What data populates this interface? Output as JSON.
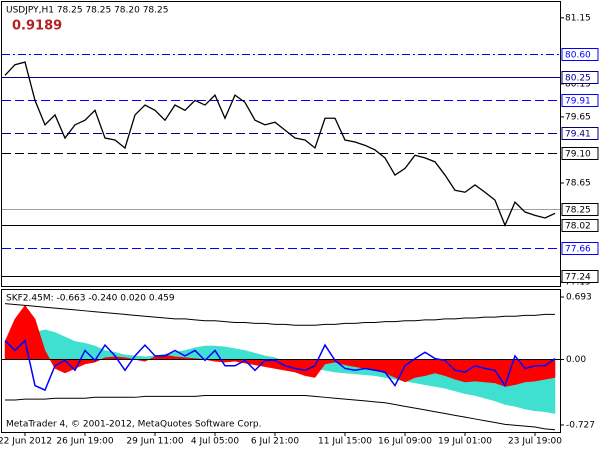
{
  "chart_data": [
    {
      "type": "line",
      "title": "USDJPY,H1  78.25 78.25 78.20 78.25",
      "subtitle": "0.9189",
      "categories": [
        null,
        null,
        "22 Jun 2012",
        null,
        null,
        null,
        null,
        null,
        "26 Jun 19:00",
        null,
        null,
        null,
        null,
        null,
        null,
        "29 Jun 11:00",
        null,
        null,
        null,
        null,
        null,
        "4 Jul 05:00",
        null,
        null,
        null,
        null,
        null,
        "6 Jul 21:00",
        null,
        null,
        null,
        null,
        null,
        null,
        "11 Jul 15:00",
        null,
        null,
        null,
        null,
        null,
        "16 Jul 09:00",
        null,
        null,
        null,
        null,
        null,
        "19 Jul 01:00",
        null,
        null,
        null,
        null,
        null,
        null,
        "23 Jul 19:00",
        null,
        null
      ],
      "series": [
        {
          "name": "USDJPY",
          "color": "#000000",
          "values": [
            80.28,
            80.44,
            80.48,
            79.9,
            79.53,
            79.68,
            79.33,
            79.53,
            79.6,
            79.75,
            79.33,
            79.3,
            79.18,
            79.68,
            79.83,
            79.75,
            79.6,
            79.83,
            79.75,
            79.9,
            79.83,
            79.98,
            79.63,
            79.98,
            79.87,
            79.6,
            79.53,
            79.57,
            79.45,
            79.33,
            79.3,
            79.18,
            79.63,
            79.63,
            79.3,
            79.27,
            79.22,
            79.15,
            79.03,
            78.77,
            78.87,
            79.07,
            79.03,
            78.97,
            78.77,
            78.54,
            78.51,
            78.62,
            78.51,
            78.39,
            78.01,
            78.36,
            78.21,
            78.16,
            78.12,
            78.19
          ]
        }
      ],
      "ylim": [
        77.06,
        81.42
      ],
      "yticks": [
        81.15,
        80.15,
        79.65,
        78.65,
        77.15
      ],
      "levels": [
        {
          "value": 80.6,
          "label": "80.60",
          "color": "#0000ff",
          "style": "dashdot"
        },
        {
          "value": 80.25,
          "label": "80.25",
          "color": "#000080",
          "style": "solid"
        },
        {
          "value": 79.91,
          "label": "79.91",
          "color": "#0000ff",
          "style": "dash"
        },
        {
          "value": 79.41,
          "label": "79.41",
          "color": "#000080",
          "style": "dash"
        },
        {
          "value": 79.1,
          "label": "79.10",
          "color": "#000000",
          "style": "dash"
        },
        {
          "value": 78.25,
          "label": "78.25",
          "color": "#a0a0a0",
          "style": "solid"
        },
        {
          "value": 78.02,
          "label": "78.02",
          "color": "#000000",
          "style": "solid"
        },
        {
          "value": 77.66,
          "label": "77.66",
          "color": "#0000ff",
          "style": "dash"
        },
        {
          "value": 77.24,
          "label": "77.24",
          "color": "#000000",
          "style": "solid"
        }
      ]
    },
    {
      "type": "area",
      "title": "SKF2.45M: -0.663 -0.240 0.020 0.459",
      "series": [
        {
          "name": "cyan",
          "color": "#40e0d0",
          "values": [
            0,
            0.1,
            0.2,
            0.3,
            0.33,
            0.3,
            0.25,
            0.2,
            0.18,
            0.15,
            0.1,
            0.08,
            0.05,
            0.04,
            0.03,
            0.04,
            0.06,
            0.08,
            0.1,
            0.13,
            0.15,
            0.15,
            0.14,
            0.12,
            0.1,
            0.07,
            0.04,
            0.02,
            -0.02,
            -0.05,
            -0.08,
            -0.1,
            -0.12,
            -0.14,
            -0.15,
            -0.16,
            -0.17,
            -0.18,
            -0.2,
            -0.22,
            -0.24,
            -0.26,
            -0.28,
            -0.3,
            -0.32,
            -0.35,
            -0.38,
            -0.4,
            -0.43,
            -0.46,
            -0.5,
            -0.52,
            -0.55,
            -0.57,
            -0.58,
            -0.6
          ]
        },
        {
          "name": "red",
          "color": "#ff0000",
          "values": [
            0.2,
            0.45,
            0.6,
            0.45,
            0.1,
            -0.1,
            -0.15,
            -0.1,
            -0.05,
            -0.03,
            0.02,
            0.03,
            0.02,
            0,
            -0.02,
            0.03,
            0.05,
            0.03,
            0.02,
            0.01,
            0,
            -0.02,
            -0.03,
            -0.02,
            -0.04,
            -0.06,
            -0.08,
            -0.1,
            -0.12,
            -0.14,
            -0.18,
            -0.2,
            -0.05,
            -0.03,
            -0.06,
            -0.08,
            -0.1,
            -0.12,
            -0.15,
            -0.2,
            -0.25,
            -0.2,
            -0.18,
            -0.15,
            -0.18,
            -0.22,
            -0.25,
            -0.24,
            -0.25,
            -0.26,
            -0.3,
            -0.28,
            -0.25,
            -0.24,
            -0.22,
            -0.2
          ]
        },
        {
          "name": "upper",
          "color": "#000000",
          "line": true,
          "values": [
            0.62,
            0.61,
            0.6,
            0.59,
            0.58,
            0.57,
            0.56,
            0.55,
            0.54,
            0.53,
            0.52,
            0.51,
            0.5,
            0.49,
            0.48,
            0.47,
            0.46,
            0.45,
            0.45,
            0.44,
            0.43,
            0.43,
            0.42,
            0.41,
            0.41,
            0.4,
            0.4,
            0.39,
            0.39,
            0.38,
            0.38,
            0.38,
            0.39,
            0.39,
            0.4,
            0.4,
            0.41,
            0.41,
            0.42,
            0.42,
            0.43,
            0.43,
            0.44,
            0.44,
            0.45,
            0.45,
            0.46,
            0.46,
            0.47,
            0.47,
            0.48,
            0.48,
            0.49,
            0.49,
            0.5,
            0.5
          ]
        },
        {
          "name": "lower",
          "color": "#000000",
          "line": true,
          "values": [
            -0.45,
            -0.45,
            -0.44,
            -0.44,
            -0.44,
            -0.43,
            -0.43,
            -0.43,
            -0.43,
            -0.42,
            -0.42,
            -0.42,
            -0.42,
            -0.42,
            -0.41,
            -0.41,
            -0.41,
            -0.41,
            -0.41,
            -0.41,
            -0.4,
            -0.4,
            -0.4,
            -0.4,
            -0.4,
            -0.4,
            -0.4,
            -0.4,
            -0.4,
            -0.4,
            -0.4,
            -0.41,
            -0.42,
            -0.43,
            -0.44,
            -0.45,
            -0.46,
            -0.47,
            -0.48,
            -0.5,
            -0.52,
            -0.54,
            -0.56,
            -0.58,
            -0.6,
            -0.62,
            -0.64,
            -0.66,
            -0.68,
            -0.7,
            -0.72,
            -0.73,
            -0.74,
            -0.75,
            -0.77,
            -0.78
          ]
        },
        {
          "name": "oscillator",
          "color": "#0000ff",
          "line": true,
          "values": [
            0.21,
            0.1,
            0.21,
            -0.29,
            -0.34,
            -0.07,
            -0.01,
            -0.12,
            0.1,
            -0.01,
            0.16,
            0.04,
            -0.12,
            0.04,
            0.16,
            0.04,
            0.04,
            0.1,
            0.04,
            0.1,
            -0.01,
            0.1,
            -0.07,
            -0.07,
            -0.01,
            -0.12,
            -0.01,
            -0.01,
            -0.07,
            -0.1,
            -0.12,
            -0.07,
            0.16,
            -0.01,
            -0.1,
            -0.12,
            -0.1,
            -0.12,
            -0.14,
            -0.29,
            -0.07,
            0.01,
            0.08,
            0.01,
            -0.01,
            -0.12,
            -0.14,
            -0.07,
            -0.1,
            -0.12,
            -0.29,
            0.04,
            -0.1,
            -0.07,
            -0.07,
            0.01
          ]
        }
      ],
      "ylim": [
        -0.805,
        0.771
      ],
      "yticks": [
        0.693,
        {
          "value": 0,
          "label": "0.00"
        },
        -0.727
      ],
      "footer": "MetaTrader 4, © 2001-2012, MetaQuotes Software Corp."
    }
  ]
}
